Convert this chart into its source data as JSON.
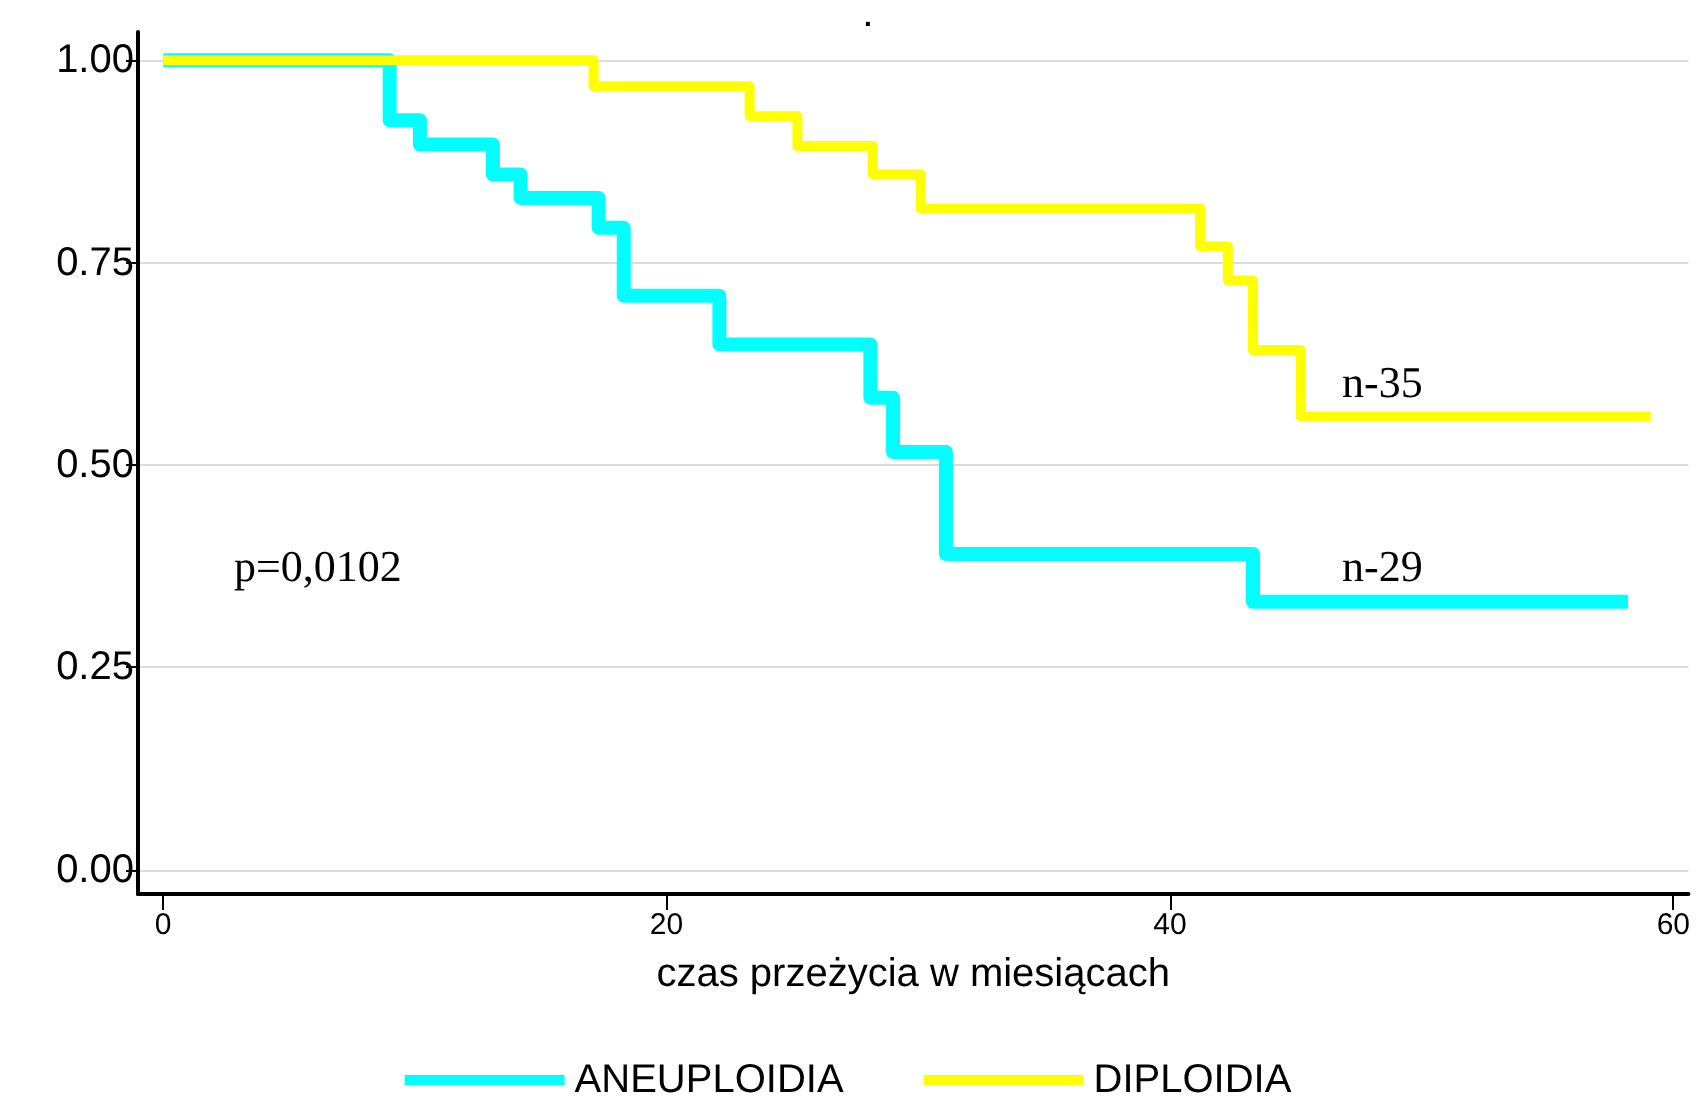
{
  "chart_data": {
    "type": "step",
    "title": ".",
    "xlabel": "czas przeżycia w miesiącach",
    "series": [
      {
        "name": "ANEUPLOIDIA",
        "color": "#00ffff",
        "x": [
          0,
          9,
          10.2,
          13.1,
          14.2,
          17.3,
          18.3,
          22.1,
          28.1,
          29,
          31.1,
          43.3,
          58.2
        ],
        "values": [
          1,
          0.926,
          0.896,
          0.859,
          0.83,
          0.793,
          0.709,
          0.649,
          0.583,
          0.516,
          0.39,
          0.331,
          0.331
        ]
      },
      {
        "name": "DIPLOIDIA",
        "color": "#ffff00",
        "x": [
          0,
          17.1,
          23.3,
          25.2,
          28.2,
          30.1,
          41.2,
          42.3,
          43.3,
          45.2,
          59.1
        ],
        "values": [
          1,
          0.968,
          0.931,
          0.894,
          0.859,
          0.817,
          0.77,
          0.728,
          0.642,
          0.56,
          0.56
        ]
      }
    ],
    "xlim": [
      -1,
      60.6
    ],
    "xticks": [
      0,
      20,
      40,
      60
    ],
    "ylim": [
      -0.03,
      1.035
    ],
    "yticks": [
      {
        "value": 0,
        "label": "0.00"
      },
      {
        "value": 0.25,
        "label": "0.25"
      },
      {
        "value": 0.5,
        "label": "0.50"
      },
      {
        "value": 0.75,
        "label": "0.75"
      },
      {
        "value": 1,
        "label": "1.00"
      }
    ],
    "grid": "y",
    "legend": "bottom",
    "marker": "none",
    "line_style": "solid",
    "annotations": [
      "p=0,0102",
      "n-35",
      "n-29"
    ]
  }
}
